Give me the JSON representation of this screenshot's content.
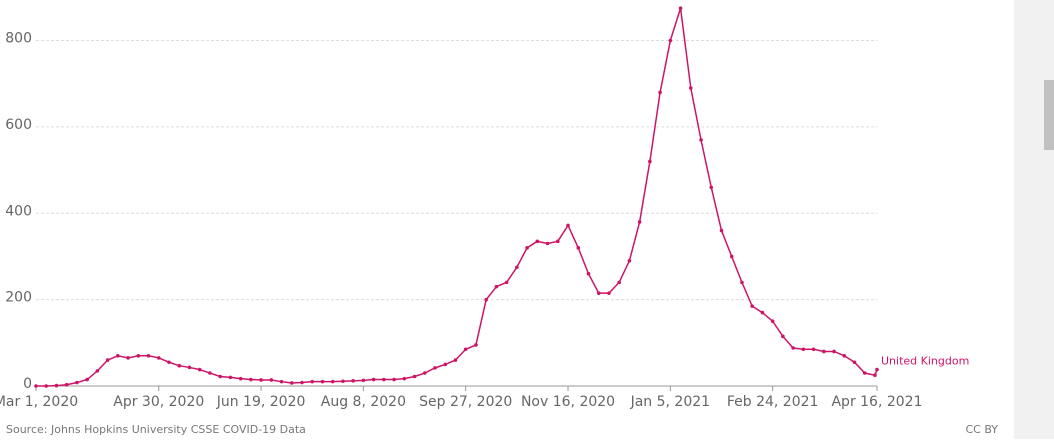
{
  "chart_data": {
    "type": "line",
    "x": [
      "2020-03-01",
      "2020-03-06",
      "2020-03-11",
      "2020-03-16",
      "2020-03-21",
      "2020-03-26",
      "2020-03-31",
      "2020-04-05",
      "2020-04-10",
      "2020-04-15",
      "2020-04-20",
      "2020-04-25",
      "2020-04-30",
      "2020-05-05",
      "2020-05-10",
      "2020-05-15",
      "2020-05-20",
      "2020-05-25",
      "2020-05-30",
      "2020-06-04",
      "2020-06-09",
      "2020-06-14",
      "2020-06-19",
      "2020-06-24",
      "2020-06-29",
      "2020-07-04",
      "2020-07-09",
      "2020-07-14",
      "2020-07-19",
      "2020-07-24",
      "2020-07-29",
      "2020-08-03",
      "2020-08-08",
      "2020-08-13",
      "2020-08-18",
      "2020-08-23",
      "2020-08-28",
      "2020-09-02",
      "2020-09-07",
      "2020-09-12",
      "2020-09-17",
      "2020-09-22",
      "2020-09-27",
      "2020-10-02",
      "2020-10-07",
      "2020-10-12",
      "2020-10-17",
      "2020-10-22",
      "2020-10-27",
      "2020-11-01",
      "2020-11-06",
      "2020-11-11",
      "2020-11-16",
      "2020-11-21",
      "2020-11-26",
      "2020-12-01",
      "2020-12-06",
      "2020-12-11",
      "2020-12-16",
      "2020-12-21",
      "2020-12-26",
      "2020-12-31",
      "2021-01-05",
      "2021-01-10",
      "2021-01-15",
      "2021-01-20",
      "2021-01-25",
      "2021-01-30",
      "2021-02-04",
      "2021-02-09",
      "2021-02-14",
      "2021-02-19",
      "2021-02-24",
      "2021-03-01",
      "2021-03-06",
      "2021-03-11",
      "2021-03-16",
      "2021-03-21",
      "2021-03-26",
      "2021-03-31",
      "2021-04-05",
      "2021-04-10",
      "2021-04-15",
      "2021-04-16"
    ],
    "series": [
      {
        "name": "United Kingdom",
        "color": "#ce1467",
        "values": [
          0,
          0,
          1,
          3,
          8,
          15,
          35,
          60,
          70,
          65,
          70,
          70,
          65,
          55,
          47,
          43,
          38,
          30,
          22,
          20,
          17,
          15,
          14,
          14,
          10,
          7,
          8,
          10,
          10,
          10,
          11,
          12,
          13,
          15,
          15,
          15,
          17,
          22,
          30,
          42,
          50,
          60,
          85,
          95,
          200,
          230,
          240,
          275,
          320,
          335,
          330,
          335,
          372,
          320,
          260,
          215,
          215,
          240,
          290,
          380,
          520,
          680,
          800,
          875,
          690,
          570,
          460,
          360,
          300,
          240,
          185,
          170,
          150,
          115,
          88,
          85,
          85,
          80,
          80,
          70,
          55,
          30,
          25,
          38
        ]
      }
    ],
    "xlim": [
      "2020-03-01",
      "2021-04-16"
    ],
    "xticks": [
      {
        "value": "2020-03-01",
        "label": "Mar 1, 2020"
      },
      {
        "value": "2020-04-30",
        "label": "Apr 30, 2020"
      },
      {
        "value": "2020-06-19",
        "label": "Jun 19, 2020"
      },
      {
        "value": "2020-08-08",
        "label": "Aug 8, 2020"
      },
      {
        "value": "2020-09-27",
        "label": "Sep 27, 2020"
      },
      {
        "value": "2020-11-16",
        "label": "Nov 16, 2020"
      },
      {
        "value": "2021-01-05",
        "label": "Jan 5, 2021"
      },
      {
        "value": "2021-02-24",
        "label": "Feb 24, 2021"
      },
      {
        "value": "2021-04-16",
        "label": "Apr 16, 2021"
      }
    ],
    "ylim": [
      0,
      880
    ],
    "yticks": [
      0,
      200,
      400,
      600,
      800
    ],
    "grid": true,
    "source": "Source: Johns Hopkins University CSSE COVID-19 Data",
    "license": "CC BY"
  }
}
